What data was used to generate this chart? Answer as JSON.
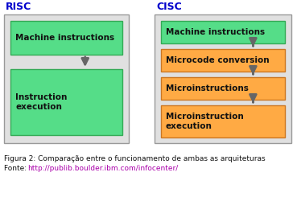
{
  "title_risc": "RISC",
  "title_cisc": "CISC",
  "risc_color": "#0000cc",
  "cisc_color": "#0000cc",
  "green_color": "#55dd88",
  "orange_color": "#ffaa44",
  "outer_box_edge": "#999999",
  "outer_box_face": "#e0e0e0",
  "caption_line1": "Figura 2: Comparação entre o funcionamento de ambas as arquiteturas",
  "caption_fonte_label": "Fonte: ",
  "caption_fonte_link": "http://publib.boulder.ibm.com/infocenter/",
  "link_color": "#aa00aa",
  "bg_color": "#ffffff",
  "risc_boxes": [
    {
      "label": "Machine instructions",
      "color": "#55dd88"
    },
    {
      "label": "Instruction\nexecution",
      "color": "#55dd88"
    }
  ],
  "cisc_boxes": [
    {
      "label": "Machine instructions",
      "color": "#55dd88"
    },
    {
      "label": "Microcode conversion",
      "color": "#ffaa44"
    },
    {
      "label": "Microinstructions",
      "color": "#ffaa44"
    },
    {
      "label": "Microinstruction\nexecution",
      "color": "#ffaa44"
    }
  ]
}
